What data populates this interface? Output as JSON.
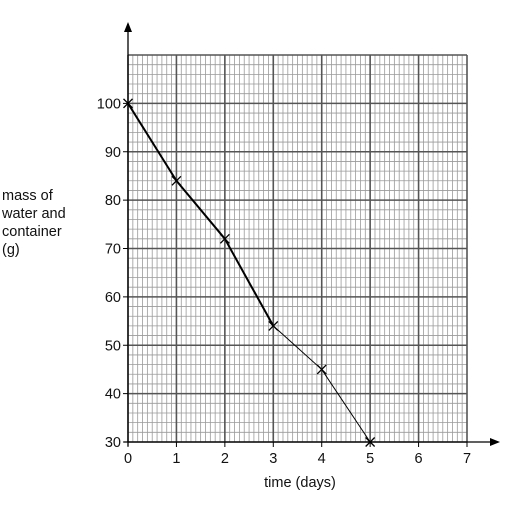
{
  "chart_data": {
    "type": "line",
    "title": "",
    "xlabel": "time (days)",
    "ylabel_lines": [
      "mass of",
      "water and",
      "container",
      "(g)"
    ],
    "xlim": [
      0,
      7
    ],
    "ylim": [
      30,
      110
    ],
    "x_ticks": [
      "0",
      "1",
      "2",
      "3",
      "4",
      "5",
      "6",
      "7"
    ],
    "y_ticks": [
      "30",
      "40",
      "50",
      "60",
      "70",
      "80",
      "90",
      "100"
    ],
    "grid": "on",
    "legend": "none",
    "series": [
      {
        "x": [
          0,
          1,
          2,
          3,
          4,
          5
        ],
        "y": [
          100,
          84,
          72,
          54,
          45,
          30
        ]
      }
    ]
  }
}
